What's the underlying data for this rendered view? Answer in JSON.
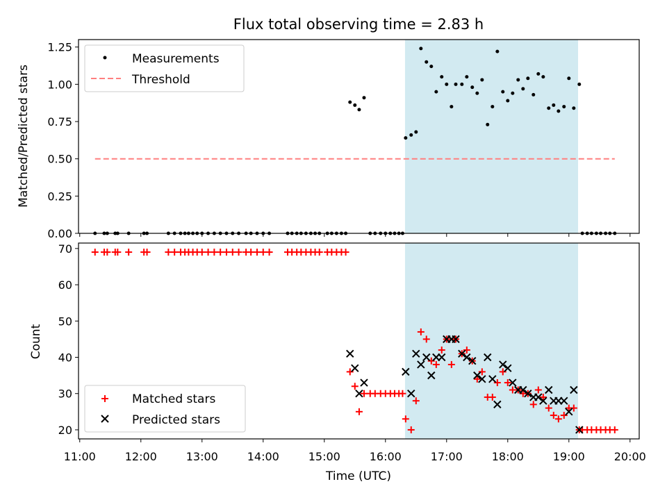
{
  "title": "Flux total observing time = 2.83 h",
  "colors": {
    "measurement": "#000000",
    "threshold": "#ff7f7f",
    "matched": "#ff0000",
    "predicted": "#000000",
    "shade": "#add8e6"
  },
  "chart_data": [
    {
      "type": "scatter",
      "ylabel": "Matched/Predicted stars",
      "xlim": [
        10.98,
        20.15
      ],
      "ylim": [
        0,
        1.3
      ],
      "yticks": [
        "0.00",
        "0.25",
        "0.50",
        "0.75",
        "1.00",
        "1.25"
      ],
      "shaded_span": [
        16.32,
        19.15
      ],
      "legend": {
        "placement": "top-left",
        "entries": [
          "Measurements",
          "Threshold"
        ]
      },
      "threshold": {
        "name": "Threshold",
        "x": [
          11.25,
          19.75
        ],
        "y": 0.5
      },
      "series": [
        {
          "name": "Measurements",
          "points": [
            [
              11.25,
              0
            ],
            [
              11.4,
              0
            ],
            [
              11.45,
              0
            ],
            [
              11.58,
              0
            ],
            [
              11.62,
              0
            ],
            [
              11.8,
              0
            ],
            [
              12.05,
              0
            ],
            [
              12.1,
              0
            ],
            [
              12.45,
              0
            ],
            [
              12.55,
              0
            ],
            [
              12.65,
              0
            ],
            [
              12.72,
              0
            ],
            [
              12.78,
              0
            ],
            [
              12.85,
              0
            ],
            [
              12.92,
              0
            ],
            [
              13.0,
              0
            ],
            [
              13.1,
              0
            ],
            [
              13.2,
              0
            ],
            [
              13.3,
              0
            ],
            [
              13.4,
              0
            ],
            [
              13.5,
              0
            ],
            [
              13.6,
              0
            ],
            [
              13.72,
              0
            ],
            [
              13.8,
              0
            ],
            [
              13.9,
              0
            ],
            [
              14.0,
              0
            ],
            [
              14.1,
              0
            ],
            [
              14.4,
              0
            ],
            [
              14.47,
              0
            ],
            [
              14.55,
              0
            ],
            [
              14.62,
              0
            ],
            [
              14.7,
              0
            ],
            [
              14.78,
              0
            ],
            [
              14.85,
              0
            ],
            [
              14.92,
              0
            ],
            [
              15.05,
              0
            ],
            [
              15.12,
              0
            ],
            [
              15.2,
              0
            ],
            [
              15.28,
              0
            ],
            [
              15.35,
              0
            ],
            [
              15.42,
              0.88
            ],
            [
              15.5,
              0.86
            ],
            [
              15.57,
              0.83
            ],
            [
              15.65,
              0.91
            ],
            [
              15.75,
              0
            ],
            [
              15.83,
              0
            ],
            [
              15.92,
              0
            ],
            [
              16.0,
              0
            ],
            [
              16.08,
              0
            ],
            [
              16.15,
              0
            ],
            [
              16.22,
              0
            ],
            [
              16.28,
              0
            ],
            [
              16.33,
              0.64
            ],
            [
              16.42,
              0.66
            ],
            [
              16.5,
              0.68
            ],
            [
              16.58,
              1.24
            ],
            [
              16.67,
              1.15
            ],
            [
              16.75,
              1.12
            ],
            [
              16.83,
              0.95
            ],
            [
              16.92,
              1.05
            ],
            [
              17.0,
              1.0
            ],
            [
              17.08,
              0.85
            ],
            [
              17.15,
              1.0
            ],
            [
              17.25,
              1.0
            ],
            [
              17.33,
              1.05
            ],
            [
              17.42,
              0.98
            ],
            [
              17.5,
              0.94
            ],
            [
              17.58,
              1.03
            ],
            [
              17.67,
              0.73
            ],
            [
              17.75,
              0.85
            ],
            [
              17.83,
              1.22
            ],
            [
              17.92,
              0.95
            ],
            [
              18.0,
              0.89
            ],
            [
              18.08,
              0.94
            ],
            [
              18.17,
              1.03
            ],
            [
              18.25,
              0.97
            ],
            [
              18.33,
              1.04
            ],
            [
              18.42,
              0.93
            ],
            [
              18.5,
              1.07
            ],
            [
              18.58,
              1.05
            ],
            [
              18.67,
              0.84
            ],
            [
              18.75,
              0.86
            ],
            [
              18.83,
              0.82
            ],
            [
              18.92,
              0.85
            ],
            [
              19.0,
              1.04
            ],
            [
              19.08,
              0.84
            ],
            [
              19.17,
              1.0
            ],
            [
              19.22,
              0
            ],
            [
              19.3,
              0
            ],
            [
              19.37,
              0
            ],
            [
              19.45,
              0
            ],
            [
              19.52,
              0
            ],
            [
              19.6,
              0
            ],
            [
              19.67,
              0
            ],
            [
              19.75,
              0
            ]
          ]
        }
      ]
    },
    {
      "type": "scatter",
      "xlabel": "Time (UTC)",
      "ylabel": "Count",
      "xlim": [
        10.98,
        20.15
      ],
      "ylim": [
        17.5,
        71.5
      ],
      "xticks": [
        "11:00",
        "12:00",
        "13:00",
        "14:00",
        "15:00",
        "16:00",
        "17:00",
        "18:00",
        "19:00",
        "20:00"
      ],
      "yticks": [
        "20",
        "30",
        "40",
        "50",
        "60",
        "70"
      ],
      "shaded_span": [
        16.32,
        19.15
      ],
      "legend": {
        "placement": "bottom-left",
        "entries": [
          "Matched stars",
          "Predicted stars"
        ]
      },
      "series": [
        {
          "name": "Matched stars",
          "marker": "plus",
          "points": [
            [
              11.25,
              69
            ],
            [
              11.4,
              69
            ],
            [
              11.45,
              69
            ],
            [
              11.58,
              69
            ],
            [
              11.62,
              69
            ],
            [
              11.8,
              69
            ],
            [
              12.05,
              69
            ],
            [
              12.1,
              69
            ],
            [
              12.45,
              69
            ],
            [
              12.55,
              69
            ],
            [
              12.65,
              69
            ],
            [
              12.72,
              69
            ],
            [
              12.78,
              69
            ],
            [
              12.85,
              69
            ],
            [
              12.92,
              69
            ],
            [
              13.0,
              69
            ],
            [
              13.1,
              69
            ],
            [
              13.2,
              69
            ],
            [
              13.3,
              69
            ],
            [
              13.4,
              69
            ],
            [
              13.5,
              69
            ],
            [
              13.6,
              69
            ],
            [
              13.72,
              69
            ],
            [
              13.8,
              69
            ],
            [
              13.9,
              69
            ],
            [
              14.0,
              69
            ],
            [
              14.1,
              69
            ],
            [
              14.4,
              69
            ],
            [
              14.47,
              69
            ],
            [
              14.55,
              69
            ],
            [
              14.62,
              69
            ],
            [
              14.7,
              69
            ],
            [
              14.78,
              69
            ],
            [
              14.85,
              69
            ],
            [
              14.92,
              69
            ],
            [
              15.05,
              69
            ],
            [
              15.12,
              69
            ],
            [
              15.2,
              69
            ],
            [
              15.28,
              69
            ],
            [
              15.35,
              69
            ],
            [
              15.42,
              36
            ],
            [
              15.5,
              32
            ],
            [
              15.57,
              25
            ],
            [
              15.65,
              30
            ],
            [
              15.75,
              30
            ],
            [
              15.83,
              30
            ],
            [
              15.92,
              30
            ],
            [
              16.0,
              30
            ],
            [
              16.08,
              30
            ],
            [
              16.15,
              30
            ],
            [
              16.22,
              30
            ],
            [
              16.28,
              30
            ],
            [
              16.33,
              23
            ],
            [
              16.42,
              20
            ],
            [
              16.5,
              28
            ],
            [
              16.58,
              47
            ],
            [
              16.67,
              45
            ],
            [
              16.75,
              39
            ],
            [
              16.83,
              38
            ],
            [
              16.92,
              42
            ],
            [
              17.0,
              45
            ],
            [
              17.08,
              38
            ],
            [
              17.15,
              45
            ],
            [
              17.25,
              41
            ],
            [
              17.33,
              42
            ],
            [
              17.42,
              39
            ],
            [
              17.5,
              34
            ],
            [
              17.58,
              36
            ],
            [
              17.67,
              29
            ],
            [
              17.75,
              29
            ],
            [
              17.83,
              33
            ],
            [
              17.92,
              36
            ],
            [
              18.0,
              33
            ],
            [
              18.08,
              31
            ],
            [
              18.17,
              31
            ],
            [
              18.25,
              30
            ],
            [
              18.33,
              30
            ],
            [
              18.42,
              27
            ],
            [
              18.5,
              31
            ],
            [
              18.58,
              29
            ],
            [
              18.67,
              26
            ],
            [
              18.75,
              24
            ],
            [
              18.83,
              23
            ],
            [
              18.92,
              24
            ],
            [
              19.0,
              26
            ],
            [
              19.08,
              26
            ],
            [
              19.17,
              20
            ],
            [
              19.22,
              20
            ],
            [
              19.3,
              20
            ],
            [
              19.37,
              20
            ],
            [
              19.45,
              20
            ],
            [
              19.52,
              20
            ],
            [
              19.6,
              20
            ],
            [
              19.67,
              20
            ],
            [
              19.75,
              20
            ]
          ]
        },
        {
          "name": "Predicted stars",
          "marker": "x",
          "points": [
            [
              15.42,
              41
            ],
            [
              15.5,
              37
            ],
            [
              15.57,
              30
            ],
            [
              15.65,
              33
            ],
            [
              16.33,
              36
            ],
            [
              16.42,
              30
            ],
            [
              16.5,
              41
            ],
            [
              16.58,
              38
            ],
            [
              16.67,
              40
            ],
            [
              16.75,
              35
            ],
            [
              16.83,
              40
            ],
            [
              16.92,
              40
            ],
            [
              17.0,
              45
            ],
            [
              17.08,
              45
            ],
            [
              17.15,
              45
            ],
            [
              17.25,
              41
            ],
            [
              17.33,
              40
            ],
            [
              17.42,
              39
            ],
            [
              17.5,
              35
            ],
            [
              17.58,
              34
            ],
            [
              17.67,
              40
            ],
            [
              17.75,
              34
            ],
            [
              17.83,
              27
            ],
            [
              17.92,
              38
            ],
            [
              18.0,
              37
            ],
            [
              18.08,
              33
            ],
            [
              18.17,
              31
            ],
            [
              18.25,
              31
            ],
            [
              18.33,
              30
            ],
            [
              18.42,
              29
            ],
            [
              18.5,
              29
            ],
            [
              18.58,
              28
            ],
            [
              18.67,
              31
            ],
            [
              18.75,
              28
            ],
            [
              18.83,
              28
            ],
            [
              18.92,
              28
            ],
            [
              19.0,
              25
            ],
            [
              19.08,
              31
            ],
            [
              19.17,
              20
            ]
          ]
        }
      ]
    }
  ]
}
